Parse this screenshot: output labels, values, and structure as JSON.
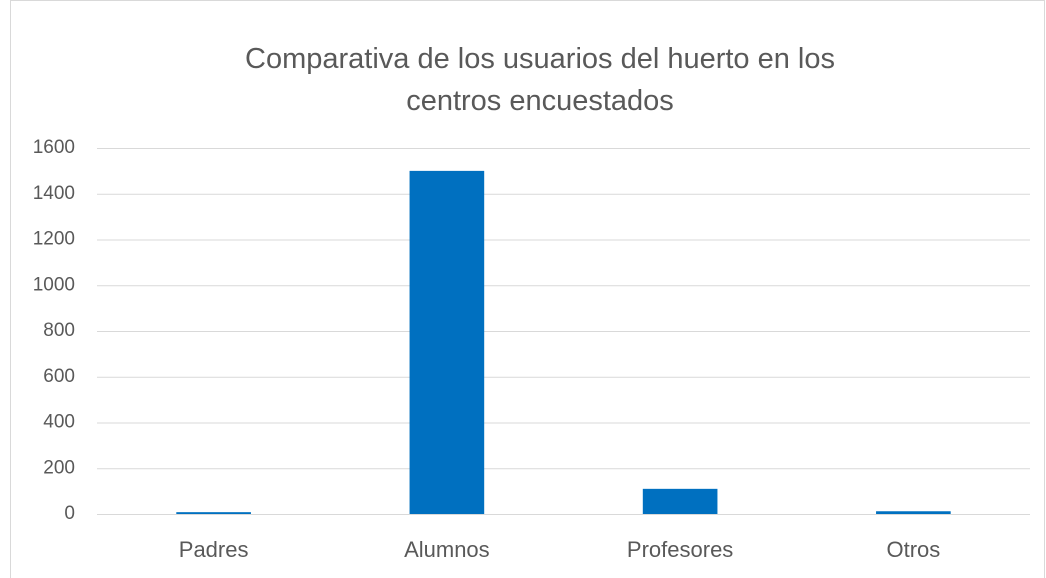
{
  "chart_data": {
    "type": "bar",
    "title": "Comparativa de los usuarios del huerto en los centros encuestados",
    "categories": [
      "Padres",
      "Alumnos",
      "Profesores",
      "Otros"
    ],
    "values": [
      8,
      1500,
      110,
      12
    ],
    "color": "#0070c0",
    "ylim": [
      0,
      1600
    ],
    "yticks": [
      0,
      200,
      400,
      600,
      800,
      1000,
      1200,
      1400,
      1600
    ],
    "grid": true
  }
}
